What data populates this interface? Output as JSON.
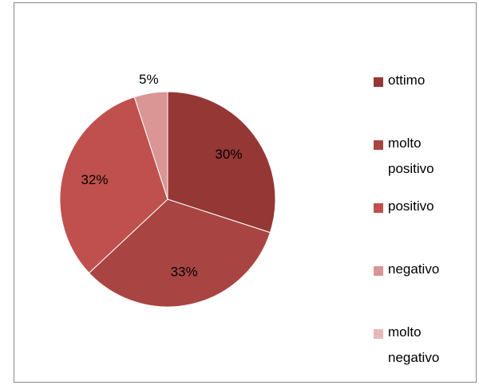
{
  "chart_data": {
    "type": "pie",
    "categories": [
      "ottimo",
      "molto positivo",
      "positivo",
      "negativo",
      "molto negativo"
    ],
    "values": [
      30,
      33,
      32,
      5,
      0
    ],
    "value_labels": [
      "30%",
      "33%",
      "32%",
      "5%",
      null
    ],
    "colors": [
      "#953735",
      "#a84543",
      "#c0504d",
      "#d99694",
      "#e6b9b8"
    ],
    "legend": "right"
  }
}
